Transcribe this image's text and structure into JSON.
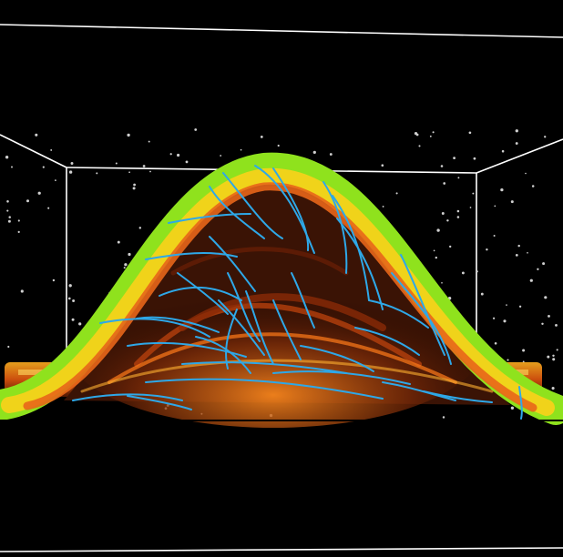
{
  "scene": {
    "background_color": "#000000",
    "box_line_color": "#ffffff",
    "particle_color": "#cfcfcf",
    "streamline_color": "#2ea8e8",
    "arch_outer_color": "#8fe21d",
    "arch_mid_color": "#f5d21a",
    "arch_inner_color": "#e8661a",
    "arch_core_color": "#3a1305"
  }
}
